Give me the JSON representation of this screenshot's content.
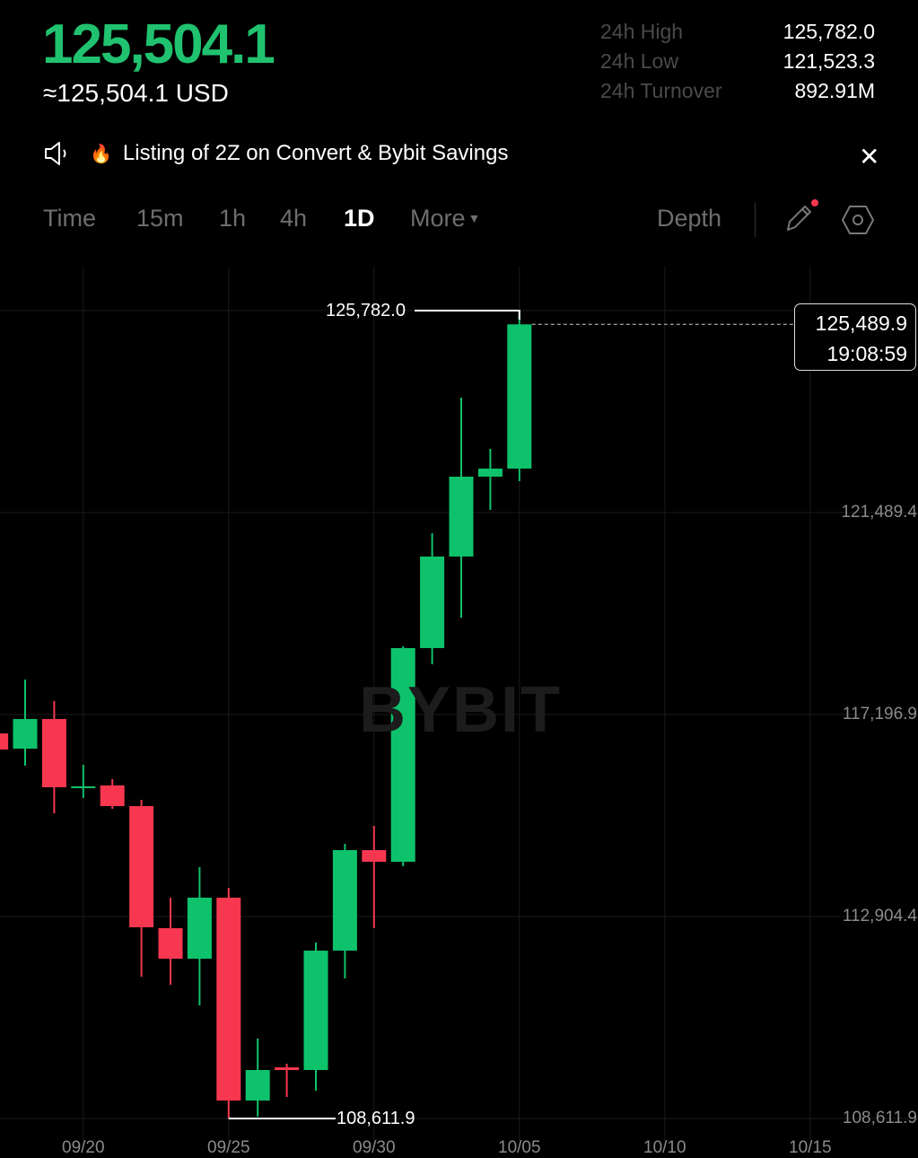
{
  "header": {
    "last_price": "125,504.1",
    "usd_price": "≈125,504.1 USD",
    "stats": [
      {
        "label": "24h High",
        "value": "125,782.0"
      },
      {
        "label": "24h Low",
        "value": "121,523.3"
      },
      {
        "label": "24h Turnover",
        "value": "892.91M"
      }
    ]
  },
  "announcement": {
    "icon": "speaker-icon",
    "emoji": "🔥",
    "text": "Listing of 2Z on Convert & Bybit Savings",
    "close": "✕"
  },
  "toolbar": {
    "timeframes": [
      "Time",
      "15m",
      "1h",
      "4h",
      "1D",
      "More"
    ],
    "active": "1D",
    "depth": "Depth",
    "icons": [
      "pencil-icon",
      "settings-hexagon-icon"
    ]
  },
  "colors": {
    "up": "#0ec26b",
    "down": "#f6374f",
    "price_up": "#20c26f",
    "notification_dot": "#f6374f"
  },
  "watermark": "BYBIT",
  "chart_data": {
    "type": "candlestick",
    "interval": "1D",
    "y_ticks": [
      "121,489.4",
      "117,196.9",
      "112,904.4",
      "108,611.9"
    ],
    "y_tick_values": [
      121489.4,
      117196.9,
      112904.4,
      108611.9
    ],
    "x_ticks": [
      "09/20",
      "09/25",
      "09/30",
      "10/05",
      "10/10",
      "10/15"
    ],
    "grid": true,
    "candles": [
      {
        "date": "09/17",
        "o": 116796,
        "h": 116850,
        "l": 116400,
        "c": 116453
      },
      {
        "date": "09/18",
        "o": 116472,
        "h": 117941,
        "l": 116110,
        "c": 117102
      },
      {
        "date": "09/19",
        "o": 117102,
        "h": 117483,
        "l": 115098,
        "c": 115652
      },
      {
        "date": "09/20",
        "o": 115652,
        "h": 116129,
        "l": 115423,
        "c": 115671
      },
      {
        "date": "09/21",
        "o": 115690,
        "h": 115823,
        "l": 115194,
        "c": 115251
      },
      {
        "date": "09/22",
        "o": 115251,
        "h": 115385,
        "l": 111626,
        "c": 112676
      },
      {
        "date": "09/23",
        "o": 112657,
        "h": 113305,
        "l": 111455,
        "c": 112008
      },
      {
        "date": "09/24",
        "o": 112008,
        "h": 113954,
        "l": 111016,
        "c": 113305
      },
      {
        "date": "09/25",
        "o": 113305,
        "h": 113515,
        "l": 108611.9,
        "c": 108994
      },
      {
        "date": "09/26",
        "o": 108994,
        "h": 110310,
        "l": 108650,
        "c": 109642
      },
      {
        "date": "09/27",
        "o": 109699,
        "h": 109776,
        "l": 109070,
        "c": 109642
      },
      {
        "date": "09/28",
        "o": 109642,
        "h": 112351,
        "l": 109203,
        "c": 112180
      },
      {
        "date": "09/29",
        "o": 112180,
        "h": 114450,
        "l": 111588,
        "c": 114316
      },
      {
        "date": "09/30",
        "o": 114316,
        "h": 114831,
        "l": 112657,
        "c": 114068
      },
      {
        "date": "10/01",
        "o": 114068,
        "h": 118647,
        "l": 113973,
        "c": 118609
      },
      {
        "date": "10/02",
        "o": 118609,
        "h": 121051,
        "l": 118265,
        "c": 120555
      },
      {
        "date": "10/03",
        "o": 120555,
        "h": 123931,
        "l": 119257,
        "c": 122253
      },
      {
        "date": "10/04",
        "o": 122253,
        "h": 122844,
        "l": 121547,
        "c": 122424
      },
      {
        "date": "10/05",
        "o": 122424,
        "h": 125782.0,
        "l": 122157,
        "c": 125489.9
      }
    ],
    "max_annotation": {
      "label": "125,782.0",
      "value": 125782.0
    },
    "min_annotation": {
      "label": "108,611.9",
      "value": 108611.9
    },
    "current_price": {
      "price": "125,489.9",
      "countdown": "19:08:59",
      "value": 125489.9
    }
  }
}
